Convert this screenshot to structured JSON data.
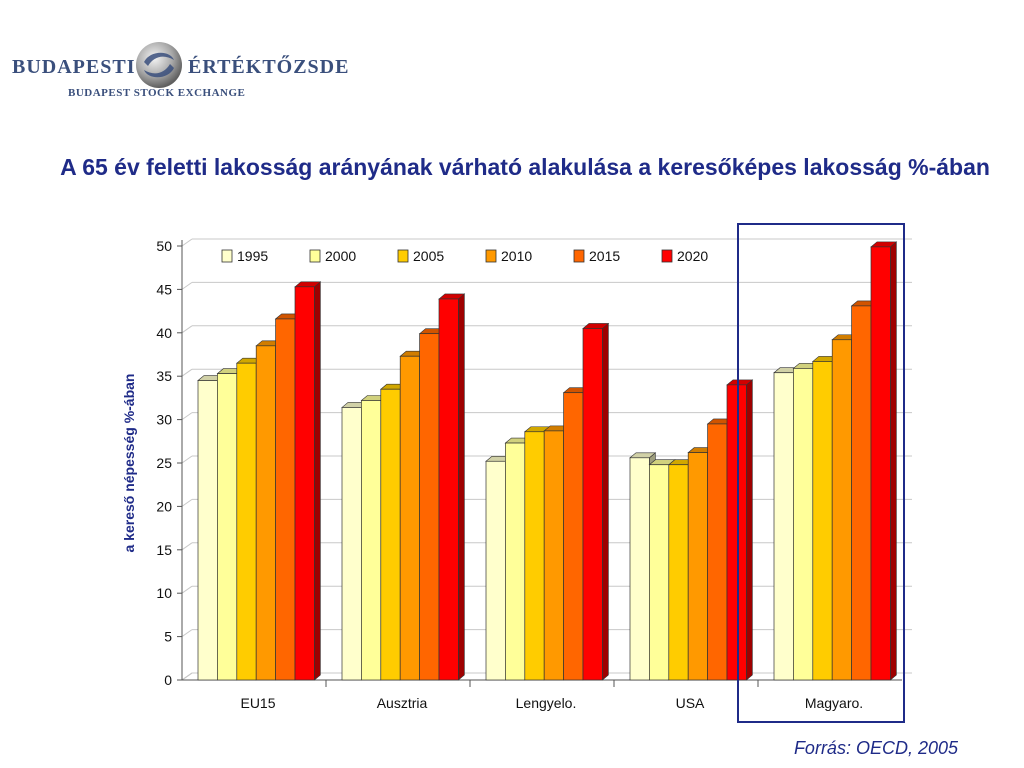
{
  "logo": {
    "left_text": "BUDAPESTI",
    "right_text": "ÉRTÉKTŐZSDE",
    "sub_text": "BUDAPEST STOCK EXCHANGE"
  },
  "source": "Forrás: OECD, 2005",
  "colors": {
    "title": "#1f2b88",
    "highlight_box": "#1f2b88"
  },
  "chart_data": {
    "type": "bar",
    "title": "A 65 év feletti lakosság arányának várható alakulása a keresőképes lakosság %-ában",
    "xlabel": "",
    "ylabel": "a kereső népesség %-ában",
    "ylim": [
      0,
      50
    ],
    "yticks": [
      "0",
      "5",
      "10",
      "15",
      "20",
      "25",
      "30",
      "35",
      "40",
      "45",
      "50"
    ],
    "grid": true,
    "legend_position": "top",
    "highlighted_category": "Magyaro.",
    "categories": [
      "EU15",
      "Ausztria",
      "Lengyelo.",
      "USA",
      "Magyaro."
    ],
    "series": [
      {
        "name": "1995",
        "color": "#ffffcc",
        "values": [
          34.5,
          31.4,
          25.2,
          25.6,
          35.4
        ]
      },
      {
        "name": "2000",
        "color": "#ffff99",
        "values": [
          35.3,
          32.2,
          27.3,
          24.8,
          35.9
        ]
      },
      {
        "name": "2005",
        "color": "#ffcc00",
        "values": [
          36.5,
          33.5,
          28.6,
          24.8,
          36.7
        ]
      },
      {
        "name": "2010",
        "color": "#ff9900",
        "values": [
          38.5,
          37.3,
          28.7,
          26.2,
          39.2
        ]
      },
      {
        "name": "2015",
        "color": "#ff6600",
        "values": [
          41.6,
          39.9,
          33.1,
          29.5,
          43.1
        ]
      },
      {
        "name": "2020",
        "color": "#ff0000",
        "values": [
          45.3,
          43.9,
          40.5,
          34.0,
          49.9
        ]
      }
    ]
  }
}
